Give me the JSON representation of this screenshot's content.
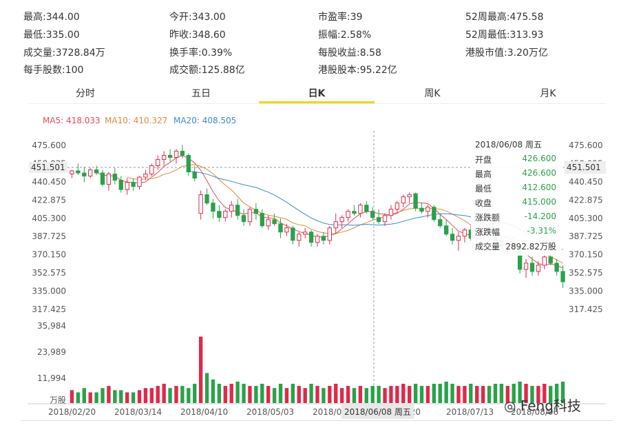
{
  "stats": [
    {
      "label": "最高:",
      "value": "344.00"
    },
    {
      "label": "今开:",
      "value": "343.00"
    },
    {
      "label": "市盈率:",
      "value": "39"
    },
    {
      "label": "52周最高:",
      "value": "475.58"
    },
    {
      "label": "最低:",
      "value": "335.00"
    },
    {
      "label": "昨收:",
      "value": "348.60"
    },
    {
      "label": "振幅:",
      "value": "2.58%"
    },
    {
      "label": "52周最低:",
      "value": "313.93"
    },
    {
      "label": "成交量:",
      "value": "3728.84万"
    },
    {
      "label": "换手率:",
      "value": "0.39%"
    },
    {
      "label": "每股收益:",
      "value": "8.58"
    },
    {
      "label": "港股市值:",
      "value": "3.20万亿"
    },
    {
      "label": "每手股数:",
      "value": "100"
    },
    {
      "label": "成交额:",
      "value": "125.88亿"
    },
    {
      "label": "港股股本:",
      "value": "95.22亿"
    }
  ],
  "tabs": [
    "分时",
    "五日",
    "日K",
    "周K",
    "月K"
  ],
  "active_tab": "日K",
  "ma": {
    "ma5": "MA5: 418.033",
    "ma10": "MA10: 410.327",
    "ma20": "MA20: 408.505"
  },
  "colors": {
    "up": "#e0294a",
    "down": "#2aa14a",
    "ma5": "#e04a5a",
    "ma10": "#e08a3a",
    "ma20": "#3a8ad0",
    "accent": "#f5d400"
  },
  "tooltip": {
    "date": "2018/06/08 周五",
    "rows": [
      {
        "k": "开盘",
        "v": "426.600"
      },
      {
        "k": "最高",
        "v": "426.600"
      },
      {
        "k": "最低",
        "v": "412.600"
      },
      {
        "k": "收盘",
        "v": "415.000"
      },
      {
        "k": "涨跌额",
        "v": "-14.200"
      },
      {
        "k": "涨跌幅",
        "v": "-3.31%"
      },
      {
        "k": "成交量",
        "v": "2892.82万股"
      }
    ]
  },
  "crosshair_price": "451.501",
  "crosshair_date": "2018/06/08 周五",
  "watermark": "Feng科技",
  "chart_data": {
    "type": "candlestick",
    "price_ticks": [
      "475.600",
      "458.025",
      "440.450",
      "422.875",
      "405.300",
      "387.725",
      "370.150",
      "352.575",
      "335.000",
      "317.425"
    ],
    "price_ticks_right": [
      "475.600",
      "458.025",
      "451.501",
      "440.450",
      "422.875",
      "405.300",
      "387.725",
      "370.150",
      "352.575",
      "335.000",
      "317.425"
    ],
    "volume_ticks": [
      "35,984",
      "23,989",
      "11,994",
      "万股"
    ],
    "x_labels": [
      "2018/02/20",
      "2018/03/14",
      "2018/04/10",
      "2018/05/03",
      "2018/0",
      "6/20",
      "2018/07/13",
      "2018/08/06"
    ],
    "ylim": [
      317.425,
      475.6
    ],
    "volume_max": 35984,
    "candles": [
      [
        448,
        452,
        444,
        451
      ],
      [
        451,
        458,
        447,
        449
      ],
      [
        449,
        455,
        440,
        446
      ],
      [
        446,
        454,
        444,
        452
      ],
      [
        452,
        456,
        447,
        449
      ],
      [
        449,
        452,
        436,
        438
      ],
      [
        438,
        450,
        432,
        448
      ],
      [
        448,
        454,
        438,
        442
      ],
      [
        442,
        446,
        430,
        433
      ],
      [
        433,
        444,
        428,
        440
      ],
      [
        440,
        444,
        432,
        436
      ],
      [
        436,
        446,
        433,
        445
      ],
      [
        445,
        452,
        442,
        448
      ],
      [
        448,
        458,
        446,
        456
      ],
      [
        456,
        466,
        452,
        462
      ],
      [
        462,
        470,
        456,
        466
      ],
      [
        466,
        472,
        460,
        464
      ],
      [
        464,
        472,
        458,
        470
      ],
      [
        470,
        476,
        463,
        466
      ],
      [
        466,
        468,
        446,
        450
      ],
      [
        450,
        456,
        441,
        444
      ],
      [
        410,
        432,
        404,
        428
      ],
      [
        428,
        434,
        418,
        420
      ],
      [
        420,
        424,
        405,
        412
      ],
      [
        412,
        418,
        402,
        406
      ],
      [
        406,
        414,
        402,
        412
      ],
      [
        412,
        422,
        406,
        418
      ],
      [
        418,
        424,
        404,
        408
      ],
      [
        408,
        414,
        398,
        402
      ],
      [
        402,
        416,
        398,
        414
      ],
      [
        414,
        420,
        404,
        410
      ],
      [
        410,
        414,
        396,
        398
      ],
      [
        398,
        408,
        394,
        404
      ],
      [
        404,
        410,
        398,
        400
      ],
      [
        400,
        405,
        386,
        392
      ],
      [
        392,
        400,
        388,
        396
      ],
      [
        396,
        398,
        380,
        384
      ],
      [
        384,
        392,
        378,
        390
      ],
      [
        390,
        396,
        386,
        392
      ],
      [
        392,
        394,
        378,
        382
      ],
      [
        382,
        390,
        378,
        388
      ],
      [
        388,
        392,
        380,
        384
      ],
      [
        384,
        398,
        380,
        396
      ],
      [
        396,
        410,
        390,
        402
      ],
      [
        402,
        408,
        396,
        406
      ],
      [
        406,
        414,
        402,
        412
      ],
      [
        412,
        418,
        408,
        410
      ],
      [
        410,
        420,
        406,
        418
      ],
      [
        418,
        422,
        410,
        412
      ],
      [
        412,
        416,
        404,
        406
      ],
      [
        406,
        414,
        400,
        402
      ],
      [
        402,
        410,
        398,
        408
      ],
      [
        408,
        418,
        404,
        414
      ],
      [
        414,
        422,
        410,
        420
      ],
      [
        420,
        428,
        416,
        426
      ],
      [
        426,
        430,
        420,
        428
      ],
      [
        429,
        430,
        412,
        415
      ],
      [
        415,
        420,
        410,
        412
      ],
      [
        412,
        418,
        406,
        416
      ],
      [
        416,
        418,
        402,
        404
      ],
      [
        404,
        410,
        396,
        398
      ],
      [
        398,
        404,
        388,
        390
      ],
      [
        390,
        396,
        380,
        384
      ],
      [
        384,
        392,
        374,
        388
      ],
      [
        388,
        396,
        382,
        394
      ],
      [
        394,
        398,
        384,
        386
      ],
      [
        386,
        392,
        378,
        390
      ],
      [
        390,
        398,
        386,
        396
      ],
      [
        396,
        400,
        388,
        392
      ],
      [
        392,
        394,
        380,
        384
      ],
      [
        384,
        388,
        376,
        378
      ],
      [
        378,
        384,
        370,
        382
      ],
      [
        382,
        388,
        374,
        376
      ],
      [
        376,
        380,
        352,
        356
      ],
      [
        356,
        366,
        348,
        362
      ],
      [
        362,
        368,
        350,
        354
      ],
      [
        354,
        364,
        350,
        360
      ],
      [
        360,
        372,
        356,
        368
      ],
      [
        368,
        372,
        360,
        362
      ],
      [
        362,
        366,
        350,
        354
      ],
      [
        354,
        360,
        338,
        344
      ]
    ],
    "volumes": [
      6,
      5,
      7,
      5,
      5,
      7,
      8,
      6,
      6,
      5,
      5,
      6,
      7,
      7,
      8,
      9,
      7,
      8,
      8,
      7,
      9,
      31,
      14,
      11,
      9,
      8,
      9,
      10,
      9,
      8,
      8,
      9,
      8,
      7,
      9,
      7,
      9,
      8,
      7,
      9,
      8,
      7,
      8,
      9,
      7,
      8,
      7,
      8,
      7,
      8,
      8,
      7,
      8,
      8,
      9,
      8,
      9,
      8,
      8,
      9,
      9,
      10,
      9,
      8,
      8,
      9,
      8,
      8,
      8,
      9,
      9,
      8,
      9,
      10,
      9,
      8,
      8,
      9,
      8,
      9,
      10
    ]
  }
}
